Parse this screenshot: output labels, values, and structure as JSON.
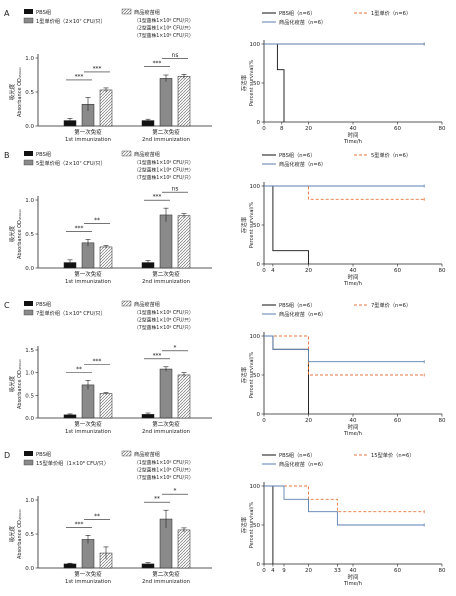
{
  "colors": {
    "pbs": "#111111",
    "mono": "#8a8a8a",
    "commercial_pattern": "#d9d9d9",
    "axis": "#222222",
    "surv_pbs": "#111111",
    "surv_mono": "#e8743b",
    "surv_commercial": "#5b7fb0"
  },
  "panels": [
    {
      "letter": "A",
      "bar_legend": {
        "pbs": "PBS组",
        "mono": "1型单价组（2×10⁷ CFU/只）",
        "commercial_title": "商品疫苗组",
        "commercial_lines": [
          "（1型菌株1×10⁸ CFU/只）",
          "（2型菌株1×10⁸ CFU/只）",
          "（7型菌株1×10⁸ CFU/只）"
        ]
      },
      "survival_legend": {
        "pbs": "PBS组（n=6）",
        "mono": "1型单价（n=6）",
        "commercial": "商品化疫苗（n=6）"
      }
    },
    {
      "letter": "B",
      "bar_legend": {
        "pbs": "PBS组",
        "mono": "5型单价组（2×10⁷ CFU/只）",
        "commercial_title": "商品疫苗组",
        "commercial_lines": [
          "（1型菌株1×10⁸ CFU/只）",
          "（2型菌株1×10⁸ CFU/只）",
          "（7型菌株1×10⁸ CFU/只）"
        ]
      },
      "survival_legend": {
        "pbs": "PBS组（n=6）",
        "mono": "5型单价（n=6）",
        "commercial": "商品化疫苗（n=6）"
      }
    },
    {
      "letter": "C",
      "bar_legend": {
        "pbs": "PBS组",
        "mono": "7型单价组（1×10⁸ CFU/只）",
        "commercial_title": "商品疫苗组",
        "commercial_lines": [
          "（1型菌株1×10⁸ CFU/只）",
          "（2型菌株1×10⁸ CFU/只）",
          "（7型菌株1×10⁸ CFU/只）"
        ]
      },
      "survival_legend": {
        "pbs": "PBS组（n=6）",
        "mono": "7型单价（n=6）",
        "commercial": "商品化疫苗（n=6）"
      }
    },
    {
      "letter": "D",
      "bar_legend": {
        "pbs": "PBS组",
        "mono": "15型单价组（1×10⁸ CFU/只）",
        "commercial_title": "商品疫苗组",
        "commercial_lines": [
          "（1型菌株1×10⁸ CFU/只）",
          "（2型菌株1×10⁸ CFU/只）",
          "（7型菌株1×10⁸ CFU/只）"
        ]
      },
      "survival_legend": {
        "pbs": "PBS组（n=6）",
        "mono": "15型单价（n=6）",
        "commercial": "商品化疫苗（n=6）"
      }
    }
  ],
  "chart_data": [
    {
      "type": "bar",
      "panel": "A",
      "ylabel_cn": "吸光度",
      "ylabel_en": "Absorbance OD₄₅₀ₙₘ",
      "ylim": [
        0,
        1.0
      ],
      "yticks": [
        0,
        0.5,
        1.0
      ],
      "groups": [
        {
          "cn": "第一次免疫",
          "en": "1st immunization"
        },
        {
          "cn": "第二次免疫",
          "en": "2nd immunization"
        }
      ],
      "series": [
        {
          "key": "pbs",
          "values": [
            0.08,
            0.08
          ],
          "errors": [
            0.03,
            0.02
          ]
        },
        {
          "key": "mono",
          "values": [
            0.32,
            0.7
          ],
          "errors": [
            0.1,
            0.05
          ]
        },
        {
          "key": "commercial",
          "values": [
            0.53,
            0.73
          ],
          "errors": [
            0.03,
            0.03
          ]
        }
      ],
      "significance": [
        {
          "group": 0,
          "from": 0,
          "to": 1,
          "label": "***"
        },
        {
          "group": 0,
          "from": 1,
          "to": 2,
          "label": "***"
        },
        {
          "group": 1,
          "from": 0,
          "to": 1,
          "label": "***"
        },
        {
          "group": 1,
          "from": 1,
          "to": 2,
          "label": "ns"
        }
      ]
    },
    {
      "type": "line",
      "panel": "A",
      "ylabel_cn": "存活率",
      "ylabel_en": "Percent survival/%",
      "xlabel_cn": "时间",
      "xlabel_en": "Time/h",
      "xlim": [
        0,
        80
      ],
      "ylim": [
        0,
        100
      ],
      "xticks": [
        0,
        8,
        20,
        40,
        60,
        80
      ],
      "yticks": [
        0,
        50,
        100
      ],
      "series": [
        {
          "key": "pbs",
          "style": "solid",
          "points": [
            [
              0,
              100
            ],
            [
              6,
              100
            ],
            [
              6,
              67
            ],
            [
              9,
              67
            ],
            [
              9,
              0
            ]
          ]
        },
        {
          "key": "mono",
          "style": "dashed",
          "points": [
            [
              0,
              100
            ],
            [
              72,
              100
            ]
          ]
        },
        {
          "key": "commercial",
          "style": "solid",
          "points": [
            [
              0,
              100
            ],
            [
              72,
              100
            ]
          ]
        }
      ]
    },
    {
      "type": "bar",
      "panel": "B",
      "ylabel_cn": "吸光度",
      "ylabel_en": "Absorbance OD₄₅₀ₙₘ",
      "ylim": [
        0,
        1.0
      ],
      "yticks": [
        0,
        0.5,
        1.0
      ],
      "groups": [
        {
          "cn": "第一次免疫",
          "en": "1st immunization"
        },
        {
          "cn": "第二次免疫",
          "en": "2nd immunization"
        }
      ],
      "series": [
        {
          "key": "pbs",
          "values": [
            0.08,
            0.08
          ],
          "errors": [
            0.04,
            0.03
          ]
        },
        {
          "key": "mono",
          "values": [
            0.37,
            0.78
          ],
          "errors": [
            0.05,
            0.1
          ]
        },
        {
          "key": "commercial",
          "values": [
            0.31,
            0.77
          ],
          "errors": [
            0.02,
            0.03
          ]
        }
      ],
      "significance": [
        {
          "group": 0,
          "from": 0,
          "to": 1,
          "label": "***"
        },
        {
          "group": 0,
          "from": 1,
          "to": 2,
          "label": "**"
        },
        {
          "group": 1,
          "from": 0,
          "to": 1,
          "label": "***"
        },
        {
          "group": 1,
          "from": 1,
          "to": 2,
          "label": "ns"
        }
      ]
    },
    {
      "type": "line",
      "panel": "B",
      "ylabel_cn": "存活率",
      "ylabel_en": "Percent survival/%",
      "xlabel_cn": "时间",
      "xlabel_en": "Time/h",
      "xlim": [
        0,
        80
      ],
      "ylim": [
        0,
        100
      ],
      "xticks": [
        0,
        4,
        20,
        40,
        60,
        80
      ],
      "yticks": [
        0,
        50,
        100
      ],
      "series": [
        {
          "key": "pbs",
          "style": "solid",
          "points": [
            [
              0,
              100
            ],
            [
              4,
              100
            ],
            [
              4,
              17
            ],
            [
              20,
              17
            ],
            [
              20,
              0
            ]
          ]
        },
        {
          "key": "mono",
          "style": "dashed",
          "points": [
            [
              0,
              100
            ],
            [
              20,
              100
            ],
            [
              20,
              83
            ],
            [
              72,
              83
            ]
          ]
        },
        {
          "key": "commercial",
          "style": "solid",
          "points": [
            [
              0,
              100
            ],
            [
              72,
              100
            ]
          ]
        }
      ]
    },
    {
      "type": "bar",
      "panel": "C",
      "ylabel_cn": "吸光度",
      "ylabel_en": "Absorbance OD₄₅₀ₙₘ",
      "ylim": [
        0,
        1.5
      ],
      "yticks": [
        0,
        0.5,
        1.0,
        1.5
      ],
      "groups": [
        {
          "cn": "第一次免疫",
          "en": "1st immunization"
        },
        {
          "cn": "第二次免疫",
          "en": "2nd immunization"
        }
      ],
      "series": [
        {
          "key": "pbs",
          "values": [
            0.07,
            0.08
          ],
          "errors": [
            0.02,
            0.03
          ]
        },
        {
          "key": "mono",
          "values": [
            0.73,
            1.08
          ],
          "errors": [
            0.1,
            0.05
          ]
        },
        {
          "key": "commercial",
          "values": [
            0.54,
            0.95
          ],
          "errors": [
            0.02,
            0.05
          ]
        }
      ],
      "significance": [
        {
          "group": 0,
          "from": 0,
          "to": 1,
          "label": "**"
        },
        {
          "group": 0,
          "from": 1,
          "to": 2,
          "label": "***"
        },
        {
          "group": 1,
          "from": 0,
          "to": 1,
          "label": "***"
        },
        {
          "group": 1,
          "from": 1,
          "to": 2,
          "label": "*"
        }
      ]
    },
    {
      "type": "line",
      "panel": "C",
      "ylabel_cn": "存活率",
      "ylabel_en": "Percent survival/%",
      "xlabel_cn": "时间",
      "xlabel_en": "Time/h",
      "xlim": [
        0,
        80
      ],
      "ylim": [
        0,
        100
      ],
      "xticks": [
        0,
        20,
        40,
        60,
        80
      ],
      "yticks": [
        0,
        50,
        100
      ],
      "series": [
        {
          "key": "pbs",
          "style": "solid",
          "points": [
            [
              0,
              100
            ],
            [
              4,
              100
            ],
            [
              4,
              83
            ],
            [
              20,
              83
            ],
            [
              20,
              0
            ]
          ]
        },
        {
          "key": "mono",
          "style": "dashed",
          "points": [
            [
              0,
              100
            ],
            [
              20,
              100
            ],
            [
              20,
              50
            ],
            [
              72,
              50
            ]
          ]
        },
        {
          "key": "commercial",
          "style": "solid",
          "points": [
            [
              0,
              100
            ],
            [
              4,
              100
            ],
            [
              4,
              83
            ],
            [
              20,
              83
            ],
            [
              20,
              67
            ],
            [
              72,
              67
            ]
          ]
        }
      ]
    },
    {
      "type": "bar",
      "panel": "D",
      "ylabel_cn": "吸光度",
      "ylabel_en": "Absorbance OD₄₅₀ₙₘ",
      "ylim": [
        0,
        1.0
      ],
      "yticks": [
        0,
        0.5,
        1.0
      ],
      "groups": [
        {
          "cn": "第一次免疫",
          "en": "1st immunization"
        },
        {
          "cn": "第二次免疫",
          "en": "2nd immunization"
        }
      ],
      "series": [
        {
          "key": "pbs",
          "values": [
            0.06,
            0.06
          ],
          "errors": [
            0.01,
            0.02
          ]
        },
        {
          "key": "mono",
          "values": [
            0.42,
            0.72
          ],
          "errors": [
            0.06,
            0.13
          ]
        },
        {
          "key": "commercial",
          "values": [
            0.22,
            0.56
          ],
          "errors": [
            0.09,
            0.03
          ]
        }
      ],
      "significance": [
        {
          "group": 0,
          "from": 0,
          "to": 1,
          "label": "***"
        },
        {
          "group": 0,
          "from": 1,
          "to": 2,
          "label": "**"
        },
        {
          "group": 1,
          "from": 0,
          "to": 1,
          "label": "**"
        },
        {
          "group": 1,
          "from": 1,
          "to": 2,
          "label": "*"
        }
      ]
    },
    {
      "type": "line",
      "panel": "D",
      "ylabel_cn": "存活率",
      "ylabel_en": "Percent survival/%",
      "xlabel_cn": "时间",
      "xlabel_en": "Time/h",
      "xlim": [
        0,
        80
      ],
      "ylim": [
        0,
        100
      ],
      "xticks": [
        0,
        4,
        9,
        20,
        33,
        40,
        60,
        80
      ],
      "yticks": [
        0,
        50,
        100
      ],
      "series": [
        {
          "key": "pbs",
          "style": "solid",
          "points": [
            [
              0,
              100
            ],
            [
              4,
              100
            ],
            [
              4,
              0
            ]
          ]
        },
        {
          "key": "mono",
          "style": "dashed",
          "points": [
            [
              0,
              100
            ],
            [
              20,
              100
            ],
            [
              20,
              83
            ],
            [
              33,
              83
            ],
            [
              33,
              67
            ],
            [
              72,
              67
            ]
          ]
        },
        {
          "key": "commercial",
          "style": "solid",
          "points": [
            [
              0,
              100
            ],
            [
              9,
              100
            ],
            [
              9,
              83
            ],
            [
              20,
              83
            ],
            [
              20,
              67
            ],
            [
              33,
              67
            ],
            [
              33,
              50
            ],
            [
              72,
              50
            ]
          ]
        }
      ]
    }
  ]
}
